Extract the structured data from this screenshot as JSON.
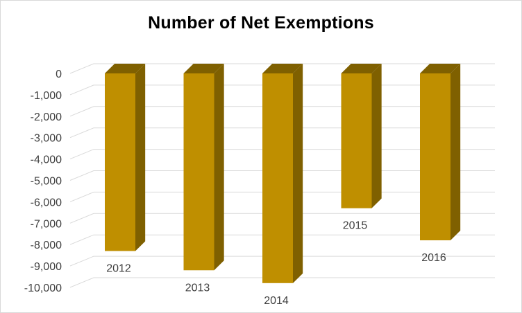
{
  "chart_data": {
    "type": "bar",
    "title": "Number of Net Exemptions",
    "xlabel": "",
    "ylabel": "",
    "categories": [
      "2012",
      "2013",
      "2014",
      "2015",
      "2016"
    ],
    "values": [
      -8300,
      -9200,
      -9800,
      -6300,
      -7800
    ],
    "ylim": [
      -10000,
      0
    ],
    "yticks": [
      0,
      -1000,
      -2000,
      -3000,
      -4000,
      -5000,
      -6000,
      -7000,
      -8000,
      -9000,
      -10000
    ],
    "ytick_labels": [
      "0",
      "-1,000",
      "-2,000",
      "-3,000",
      "-4,000",
      "-5,000",
      "-6,000",
      "-7,000",
      "-8,000",
      "-9,000",
      "-10,000"
    ],
    "grid": true,
    "legend": "none",
    "style": "3d-column",
    "colors": {
      "bar_front": "#bf8f00",
      "bar_side": "#7f6000",
      "bar_top": "#7f6000",
      "gridline": "#d9d9d9",
      "tick_text": "#404040"
    }
  }
}
